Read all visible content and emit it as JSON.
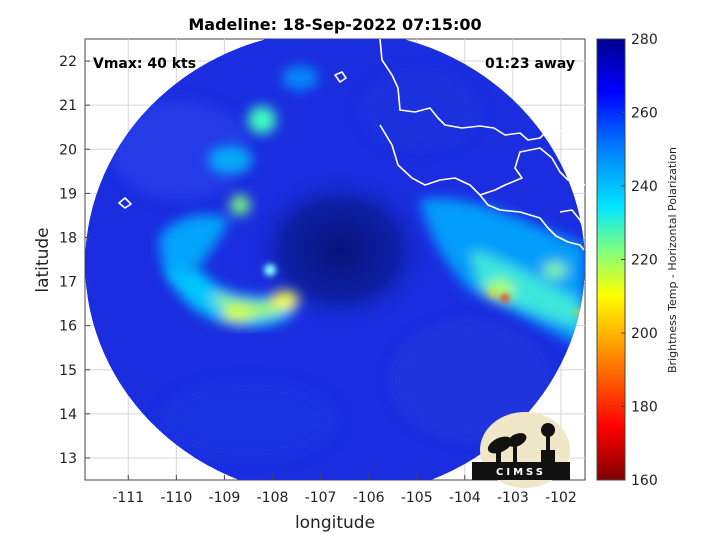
{
  "title": "Madeline: 18-Sep-2022 07:15:00",
  "annotations": {
    "vmax": "Vmax: 40 kts",
    "time_away": "01:23 away"
  },
  "logo_text": "CIMSS",
  "colors": {
    "ocean_bg": "#1a2ee0",
    "cold_core": "#0a1a9a",
    "coast": "#ffffff",
    "colormap": [
      "#800000",
      "#ff0000",
      "#ff9900",
      "#ffff00",
      "#7fff7f",
      "#00e5ff",
      "#0080ff",
      "#0000ff",
      "#00008f"
    ]
  },
  "chart_data": {
    "type": "heatmap",
    "title": "Madeline: 18-Sep-2022 07:15:00",
    "xlabel": "longitude",
    "ylabel": "latitude",
    "xlim": [
      -111.9,
      -101.5
    ],
    "ylim": [
      12.5,
      22.5
    ],
    "xticks": [
      -111,
      -110,
      -109,
      -108,
      -107,
      -106,
      -105,
      -104,
      -103,
      -102
    ],
    "yticks": [
      13,
      14,
      15,
      16,
      17,
      18,
      19,
      20,
      21,
      22
    ],
    "grid": true,
    "colorbar": {
      "label": "Brightness Temp - Horizontal Polarization",
      "range": [
        160,
        280
      ],
      "ticks": [
        160,
        180,
        200,
        220,
        240,
        260,
        280
      ]
    },
    "storm_center": {
      "lon": -106.4,
      "lat": 17.8
    },
    "swath_center": {
      "lon": -106.8,
      "lat": 17.4
    }
  }
}
